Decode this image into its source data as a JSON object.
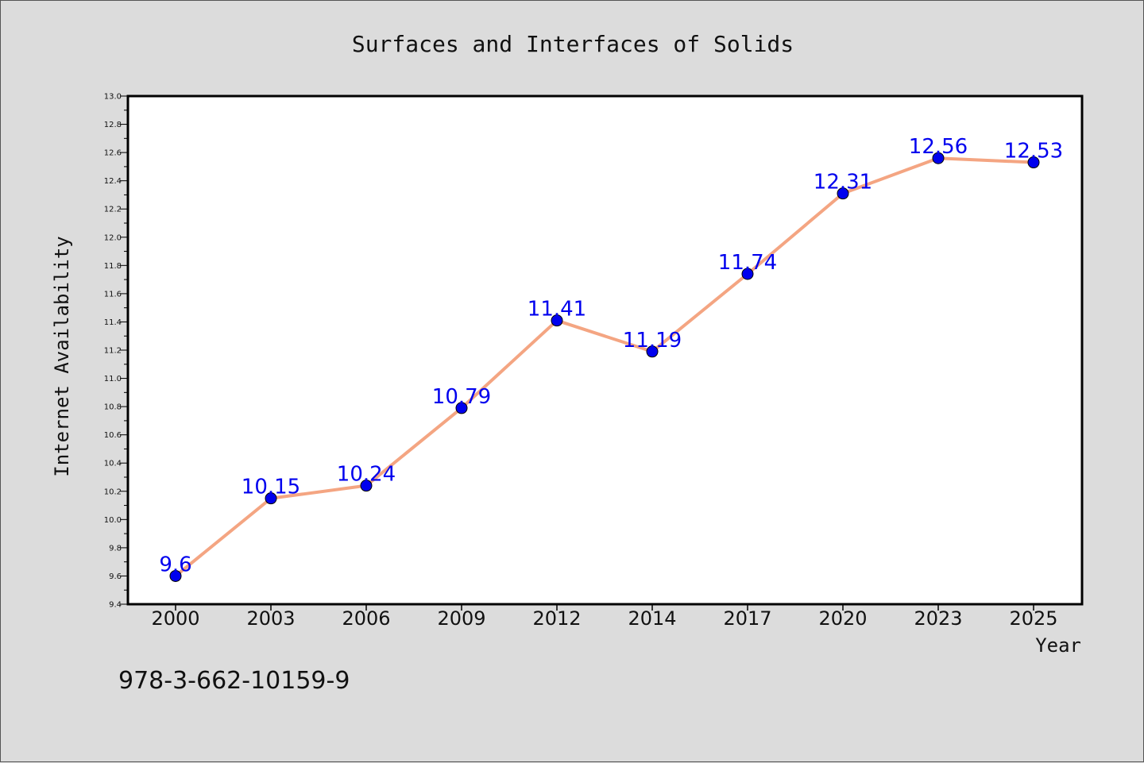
{
  "chart_data": {
    "type": "line",
    "title": "Surfaces and Interfaces of Solids",
    "xlabel": "Year",
    "ylabel": "Internet Availability",
    "categories": [
      "2000",
      "2003",
      "2006",
      "2009",
      "2012",
      "2014",
      "2017",
      "2020",
      "2023",
      "2025"
    ],
    "series": [
      {
        "values": [
          9.6,
          10.15,
          10.24,
          10.79,
          11.41,
          11.19,
          11.74,
          12.31,
          12.56,
          12.53
        ]
      }
    ],
    "data_labels": [
      "9.6",
      "10.15",
      "10.24",
      "10.79",
      "11.41",
      "11.19",
      "11.74",
      "12.31",
      "12.56",
      "12.53"
    ],
    "ylim": [
      9.4,
      13.0
    ],
    "yticks": [
      "9.4",
      "9.6",
      "9.8",
      "10.0",
      "10.2",
      "10.4",
      "10.6",
      "10.8",
      "11.0",
      "11.2",
      "11.4",
      "11.6",
      "11.8",
      "12.0",
      "12.2",
      "12.4",
      "12.6",
      "12.8",
      "13.0"
    ],
    "grid": false,
    "legend": "none",
    "colors": {
      "line": "#f4a582",
      "marker": "#0000ee",
      "label": "#0000ee",
      "plot_bg": "#ffffff",
      "page_bg": "#dcdcdc"
    }
  },
  "footer": {
    "isbn": "978-3-662-10159-9"
  }
}
